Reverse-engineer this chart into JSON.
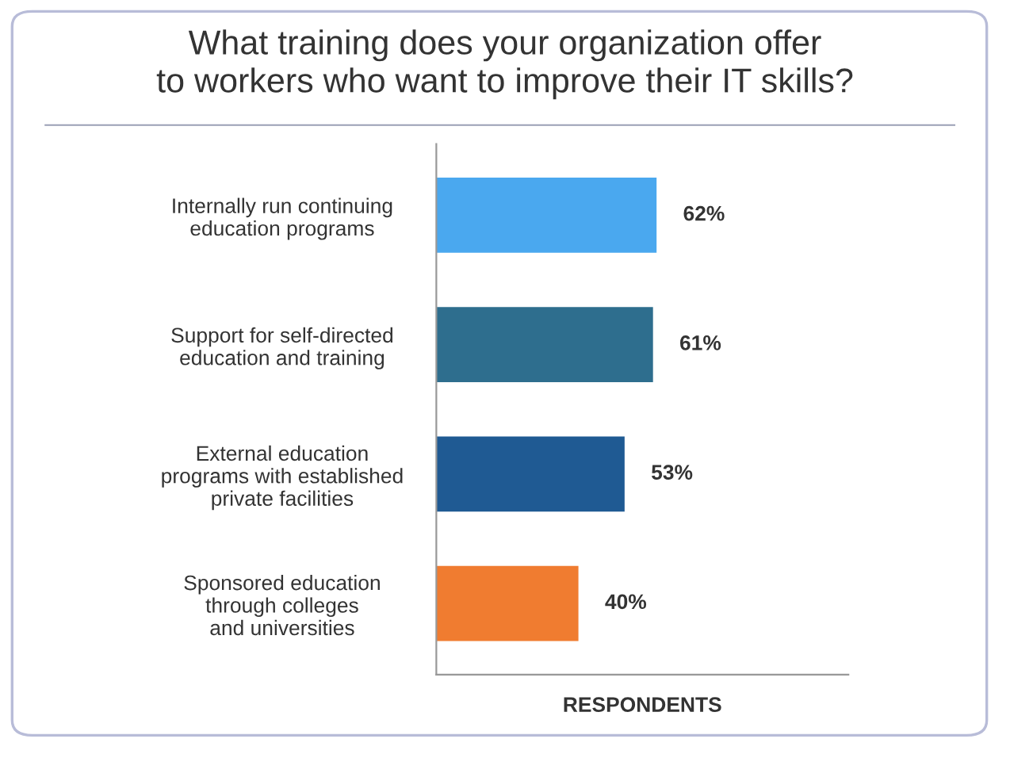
{
  "chart_data": {
    "type": "bar",
    "orientation": "horizontal",
    "title": "What training does your organization offer\nto workers who want to improve their IT skills?",
    "xlabel": "RESPONDENTS",
    "categories": [
      "Internally run continuing\neducation programs",
      "Support for self-directed\neducation and training",
      "External education\nprograms with established\nprivate facilities",
      "Sponsored education\nthrough colleges\nand universities"
    ],
    "values": [
      62,
      61,
      53,
      40
    ],
    "colors": [
      "#4aa8ef",
      "#2e6e8e",
      "#1f5a93",
      "#f07c30"
    ],
    "value_labels": [
      "62%",
      "61%",
      "53%",
      "40%"
    ],
    "xlim": [
      0,
      116
    ],
    "grid": false,
    "legend": false
  }
}
